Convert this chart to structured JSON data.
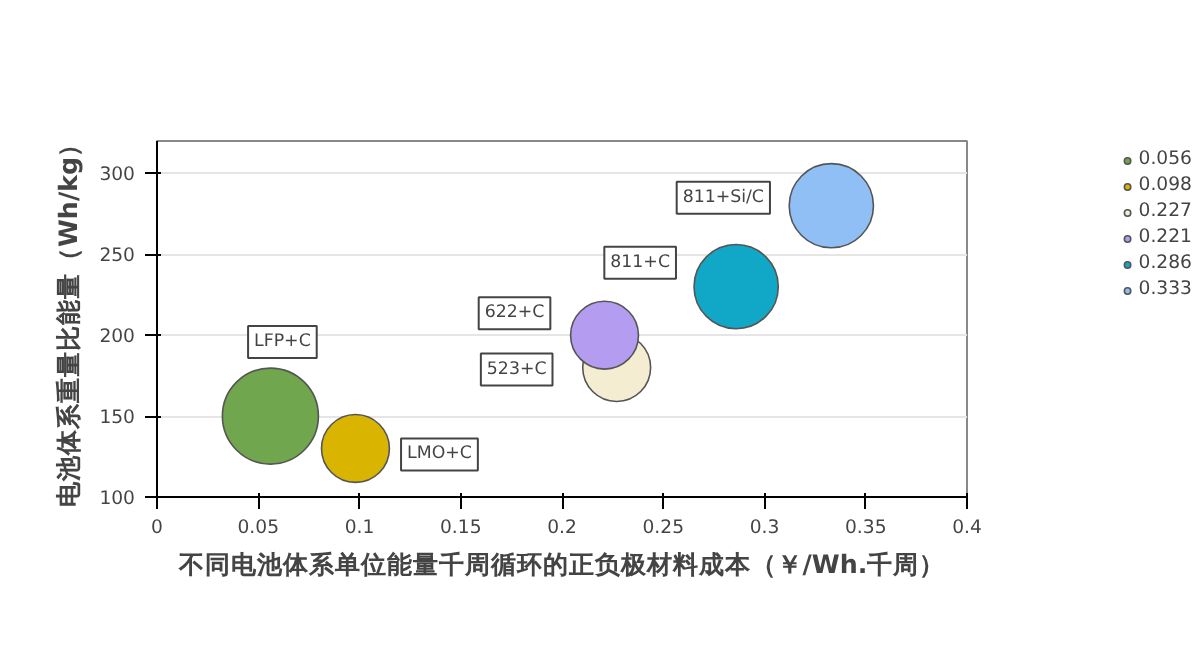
{
  "chart_data": {
    "type": "bubble",
    "xlabel": "不同电池体系单位能量千周循环的正负极材料成本（￥/Wh.千周）",
    "ylabel": "电池体系重量比能量（Wh/kg）",
    "xlim": [
      0,
      0.4
    ],
    "xticks": [
      0,
      0.05,
      0.1,
      0.15,
      0.2,
      0.25,
      0.3,
      0.35,
      0.4
    ],
    "ylim": [
      100,
      320
    ],
    "yticks": [
      100,
      150,
      200,
      250,
      300
    ],
    "grid": "y",
    "legend": "right",
    "series": [
      {
        "name": "0.056",
        "color": "#6fa64e",
        "x": [
          0.056
        ],
        "values": [
          150
        ],
        "sizes": [
          1
        ]
      },
      {
        "name": "0.098",
        "color": "#d9b400",
        "x": [
          0.098
        ],
        "values": [
          130
        ],
        "sizes": [
          0.5
        ]
      },
      {
        "name": "0.227",
        "color": "#f4edd2",
        "x": [
          0.227
        ],
        "values": [
          180
        ],
        "sizes": [
          0.5
        ]
      },
      {
        "name": "0.221",
        "color": "#b49cf0",
        "x": [
          0.221
        ],
        "values": [
          200
        ],
        "sizes": [
          0.5
        ]
      },
      {
        "name": "0.286",
        "color": "#10a8c6",
        "x": [
          0.286
        ],
        "values": [
          230
        ],
        "sizes": [
          0.77
        ]
      },
      {
        "name": "0.333",
        "color": "#8fbff5",
        "x": [
          0.333
        ],
        "values": [
          280
        ],
        "sizes": [
          0.77
        ]
      }
    ],
    "annotations": [
      "LFP+C",
      "LMO+C",
      "523+C",
      "622+C",
      "811+C",
      "811+Si/C"
    ]
  }
}
